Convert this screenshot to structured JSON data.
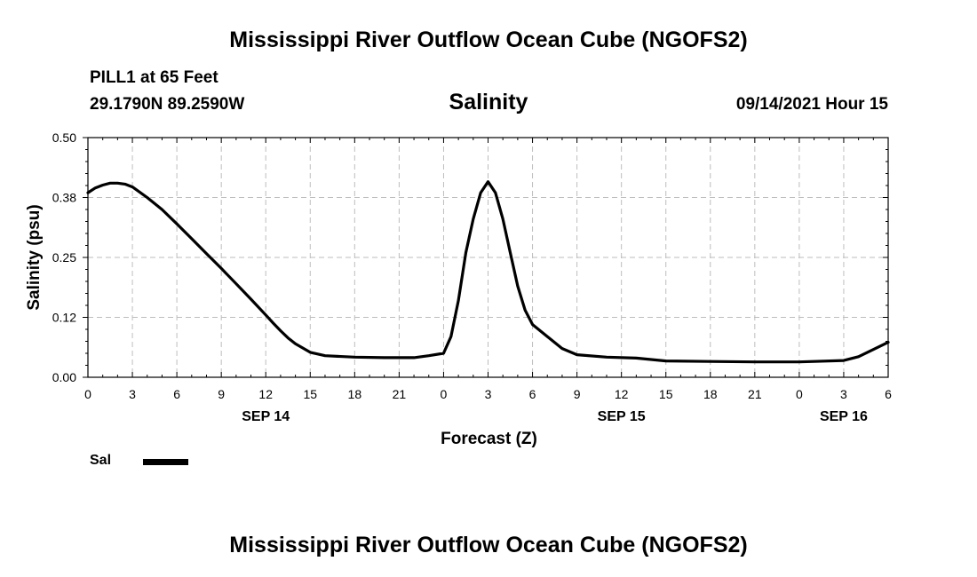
{
  "header": {
    "title": "Mississippi River Outflow Ocean Cube (NGOFS2)",
    "station": "PILL1 at 65 Feet",
    "coords": "29.1790N  89.2590W",
    "subtitle": "Salinity",
    "datetime": "09/14/2021 Hour 15"
  },
  "footer": {
    "title": "Mississippi River Outflow Ocean Cube (NGOFS2)"
  },
  "legend": {
    "label": "Sal",
    "color": "#000000"
  },
  "chart_data": {
    "type": "line",
    "title": "Salinity",
    "xlabel": "Forecast (Z)",
    "ylabel": "Salinity (psu)",
    "xlim": [
      0,
      54
    ],
    "ylim": [
      0,
      0.5
    ],
    "yticks": [
      0,
      0.125,
      0.25,
      0.375,
      0.5
    ],
    "ytick_labels": [
      "0.00",
      "0.12",
      "0.25",
      "0.38",
      "0.50"
    ],
    "xticks": [
      0,
      3,
      6,
      9,
      12,
      15,
      18,
      21,
      24,
      27,
      30,
      33,
      36,
      39,
      42,
      45,
      48,
      51,
      54
    ],
    "xtick_labels": [
      "0",
      "3",
      "6",
      "9",
      "12",
      "15",
      "18",
      "21",
      "0",
      "3",
      "6",
      "9",
      "12",
      "15",
      "18",
      "21",
      "0",
      "3",
      "6"
    ],
    "day_labels": [
      {
        "x": 12,
        "label": "SEP 14"
      },
      {
        "x": 36,
        "label": "SEP 15"
      },
      {
        "x": 51,
        "label": "SEP 16"
      }
    ],
    "grid": true,
    "series": [
      {
        "name": "Sal",
        "x": [
          0,
          0.5,
          1,
          1.5,
          2,
          2.5,
          3,
          4,
          5,
          6,
          7,
          8,
          9,
          10,
          11,
          12,
          12.5,
          13,
          13.5,
          14,
          15,
          16,
          18,
          20,
          22,
          23,
          24,
          24.5,
          25,
          25.5,
          26,
          26.5,
          27,
          27.5,
          28,
          28.5,
          29,
          29.5,
          30,
          31,
          32,
          33,
          35,
          37,
          39,
          42,
          45,
          48,
          51,
          52,
          53,
          54
        ],
        "values": [
          0.385,
          0.395,
          0.401,
          0.405,
          0.405,
          0.403,
          0.397,
          0.375,
          0.35,
          0.32,
          0.289,
          0.258,
          0.227,
          0.195,
          0.163,
          0.13,
          0.113,
          0.097,
          0.082,
          0.07,
          0.052,
          0.045,
          0.042,
          0.041,
          0.041,
          0.045,
          0.05,
          0.085,
          0.16,
          0.26,
          0.33,
          0.385,
          0.408,
          0.385,
          0.33,
          0.26,
          0.19,
          0.14,
          0.11,
          0.085,
          0.06,
          0.047,
          0.042,
          0.04,
          0.034,
          0.033,
          0.032,
          0.032,
          0.035,
          0.043,
          0.058,
          0.073
        ]
      }
    ]
  }
}
